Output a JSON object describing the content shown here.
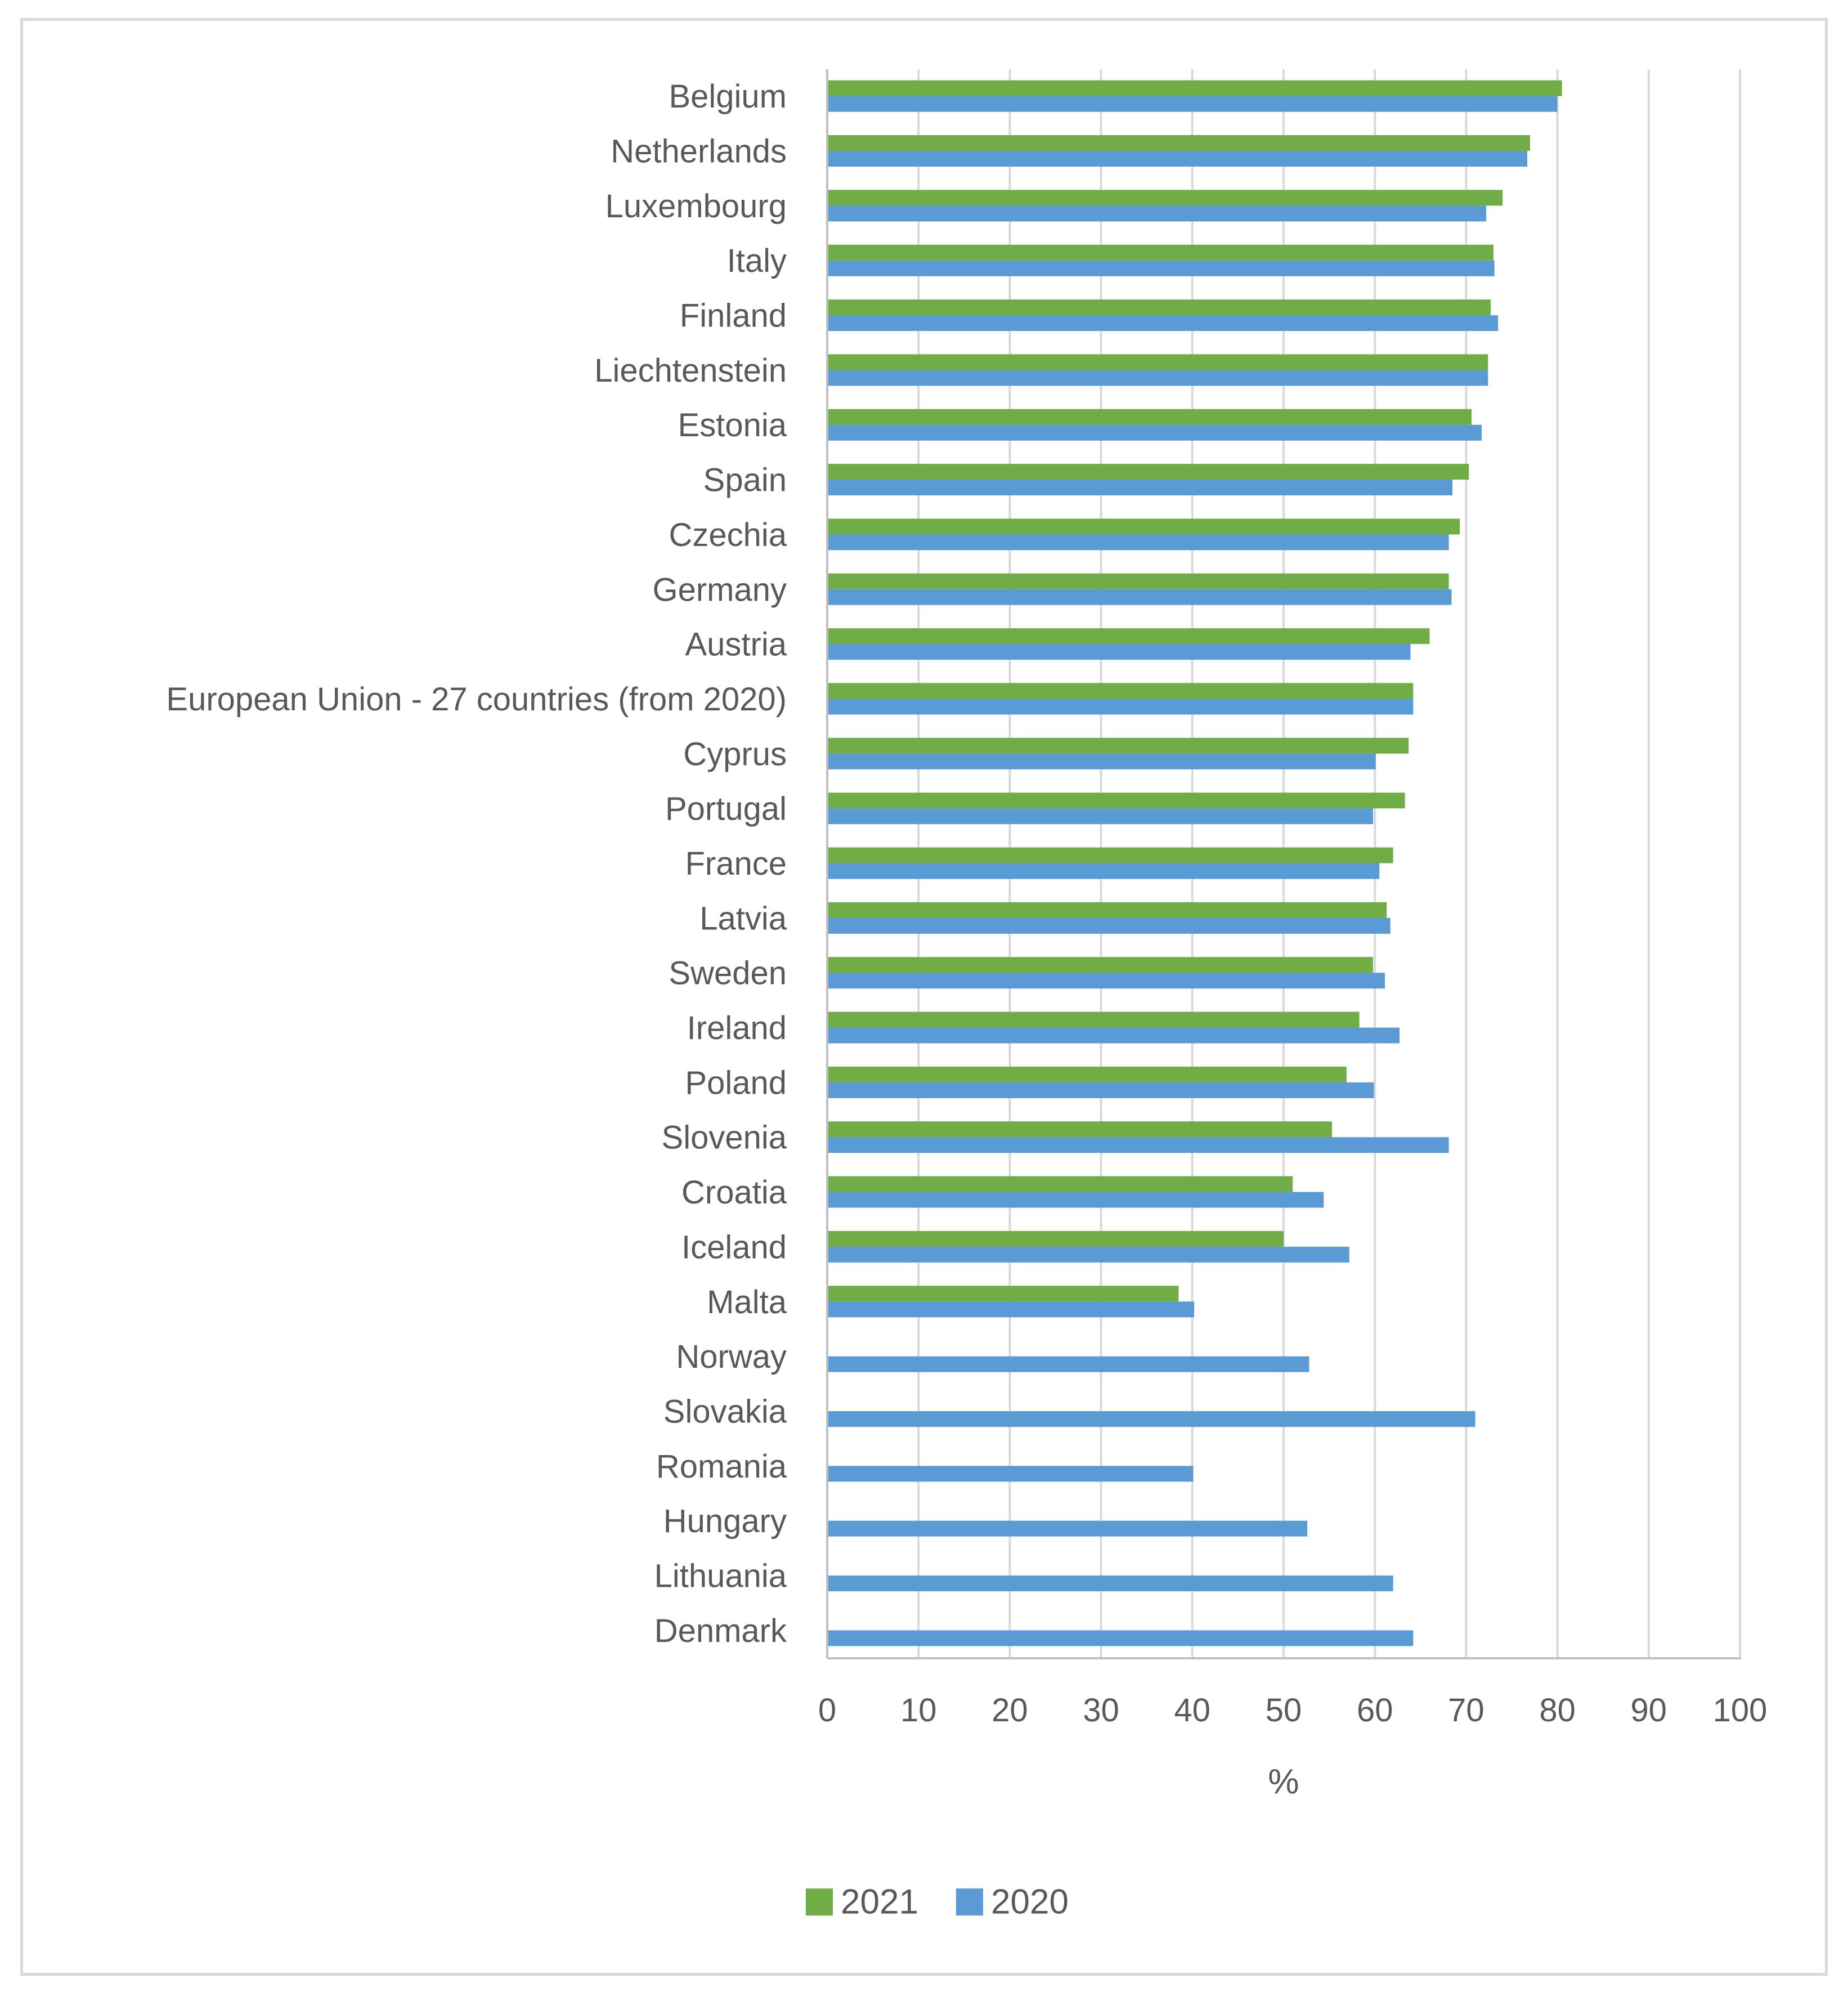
{
  "chart_data": {
    "type": "bar",
    "orientation": "horizontal",
    "title": "",
    "xlabel": "%",
    "ylabel": "",
    "xlim": [
      0,
      100
    ],
    "xticks": [
      "0",
      "10",
      "20",
      "30",
      "40",
      "50",
      "60",
      "70",
      "80",
      "90",
      "100"
    ],
    "grid": true,
    "legend_position": "bottom",
    "categories": [
      "Belgium",
      "Netherlands",
      "Luxembourg",
      "Italy",
      "Finland",
      "Liechtenstein",
      "Estonia",
      "Spain",
      "Czechia",
      "Germany",
      "Austria",
      "European Union - 27 countries (from 2020)",
      "Cyprus",
      "Portugal",
      "France",
      "Latvia",
      "Sweden",
      "Ireland",
      "Poland",
      "Slovenia",
      "Croatia",
      "Iceland",
      "Malta",
      "Norway",
      "Slovakia",
      "Romania",
      "Hungary",
      "Lithuania",
      "Denmark"
    ],
    "series": [
      {
        "name": "2021",
        "color": "#70ad47",
        "values": [
          80.5,
          77,
          74,
          73,
          72.7,
          72.4,
          70.6,
          70.3,
          69.3,
          68.1,
          66,
          64.2,
          63.7,
          63.3,
          62,
          61.3,
          59.8,
          58.3,
          56.9,
          55.3,
          51,
          50,
          38.5,
          null,
          null,
          null,
          null,
          null,
          null
        ]
      },
      {
        "name": "2020",
        "color": "#5b9bd5",
        "values": [
          80,
          76.7,
          72.2,
          73.1,
          73.5,
          72.4,
          71.7,
          68.5,
          68.1,
          68.4,
          63.9,
          64.2,
          60.1,
          59.8,
          60.5,
          61.7,
          61.1,
          62.7,
          59.9,
          68.1,
          54.4,
          57.2,
          40.2,
          52.8,
          71,
          40.1,
          52.6,
          62,
          64.2
        ]
      }
    ]
  }
}
